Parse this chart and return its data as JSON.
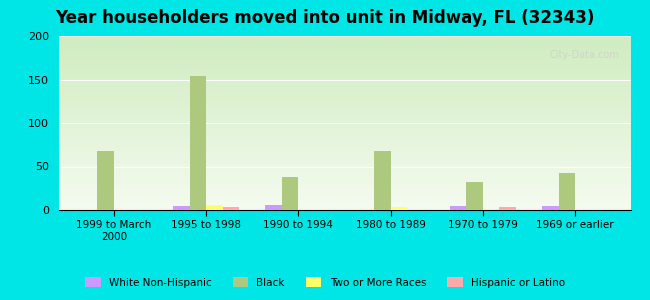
{
  "title": "Year householders moved into unit in Midway, FL (32343)",
  "categories": [
    "1999 to March\n2000",
    "1995 to 1998",
    "1990 to 1994",
    "1980 to 1989",
    "1970 to 1979",
    "1969 or earlier"
  ],
  "series": {
    "White Non-Hispanic": [
      0,
      5,
      6,
      0,
      5,
      5
    ],
    "Black": [
      68,
      154,
      38,
      68,
      32,
      43
    ],
    "Two or More Races": [
      0,
      6,
      0,
      4,
      0,
      0
    ],
    "Hispanic or Latino": [
      0,
      4,
      0,
      0,
      4,
      0
    ]
  },
  "colors": {
    "White Non-Hispanic": "#cc99ff",
    "Black": "#adc97e",
    "Two or More Races": "#ffff66",
    "Hispanic or Latino": "#ffaaaa"
  },
  "ylim": [
    0,
    200
  ],
  "yticks": [
    0,
    50,
    100,
    150,
    200
  ],
  "background_color": "#00e5e5",
  "plot_bg_start": "#f0f8ee",
  "plot_bg_end": "#ffffff",
  "bar_width": 0.18,
  "watermark": "City-Data.com"
}
